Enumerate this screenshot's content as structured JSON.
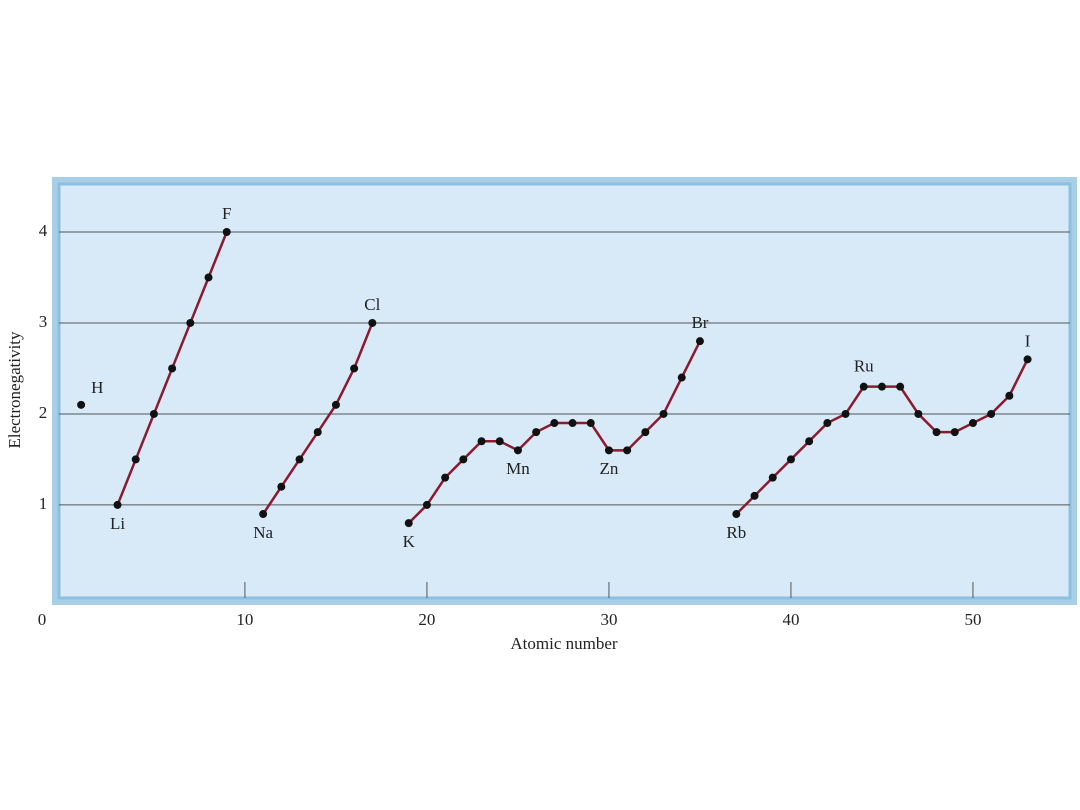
{
  "chart_data": {
    "type": "line",
    "x_label": "Atomic number",
    "y_label": "Electronegativity",
    "xlim": [
      -0.6,
      55.7
    ],
    "ylim": [
      -0.1,
      4.6
    ],
    "xticks": [
      0,
      10,
      20,
      30,
      40,
      50
    ],
    "yticks": [
      1,
      2,
      3,
      4
    ],
    "grid": true,
    "line_color": "#8b1a2e",
    "marker_color": "#111111",
    "series": [
      {
        "x": [
          1
        ],
        "values": [
          2.1
        ],
        "labels": [
          "H"
        ]
      },
      {
        "x": [
          3,
          4,
          5,
          6,
          7,
          8,
          9
        ],
        "values": [
          1.0,
          1.5,
          2.0,
          2.5,
          3.0,
          3.5,
          4.0
        ],
        "labels": [
          "Li",
          null,
          null,
          null,
          null,
          null,
          "F"
        ]
      },
      {
        "x": [
          11,
          12,
          13,
          14,
          15,
          16,
          17
        ],
        "values": [
          0.9,
          1.2,
          1.5,
          1.8,
          2.1,
          2.5,
          3.0
        ],
        "labels": [
          "Na",
          null,
          null,
          null,
          null,
          null,
          "Cl"
        ]
      },
      {
        "x": [
          19,
          20,
          21,
          22,
          23,
          24,
          25,
          26,
          27,
          28,
          29,
          30,
          31,
          32,
          33,
          34,
          35
        ],
        "values": [
          0.8,
          1.0,
          1.3,
          1.5,
          1.7,
          1.7,
          1.6,
          1.8,
          1.9,
          1.9,
          1.9,
          1.6,
          1.6,
          1.8,
          2.0,
          2.4,
          2.8
        ],
        "labels": [
          "K",
          null,
          null,
          null,
          null,
          null,
          "Mn",
          null,
          null,
          null,
          null,
          "Zn",
          null,
          null,
          null,
          null,
          "Br"
        ]
      },
      {
        "x": [
          37,
          38,
          39,
          40,
          41,
          42,
          43,
          44,
          45,
          46,
          47,
          48,
          49,
          50,
          51,
          52,
          53
        ],
        "values": [
          0.9,
          1.1,
          1.3,
          1.5,
          1.7,
          1.9,
          2.0,
          2.3,
          2.3,
          2.3,
          2.0,
          1.8,
          1.8,
          1.9,
          2.0,
          2.2,
          2.6
        ],
        "labels": [
          "Rb",
          null,
          null,
          null,
          null,
          null,
          null,
          "Ru",
          null,
          null,
          null,
          null,
          null,
          null,
          null,
          null,
          "I"
        ]
      }
    ]
  }
}
